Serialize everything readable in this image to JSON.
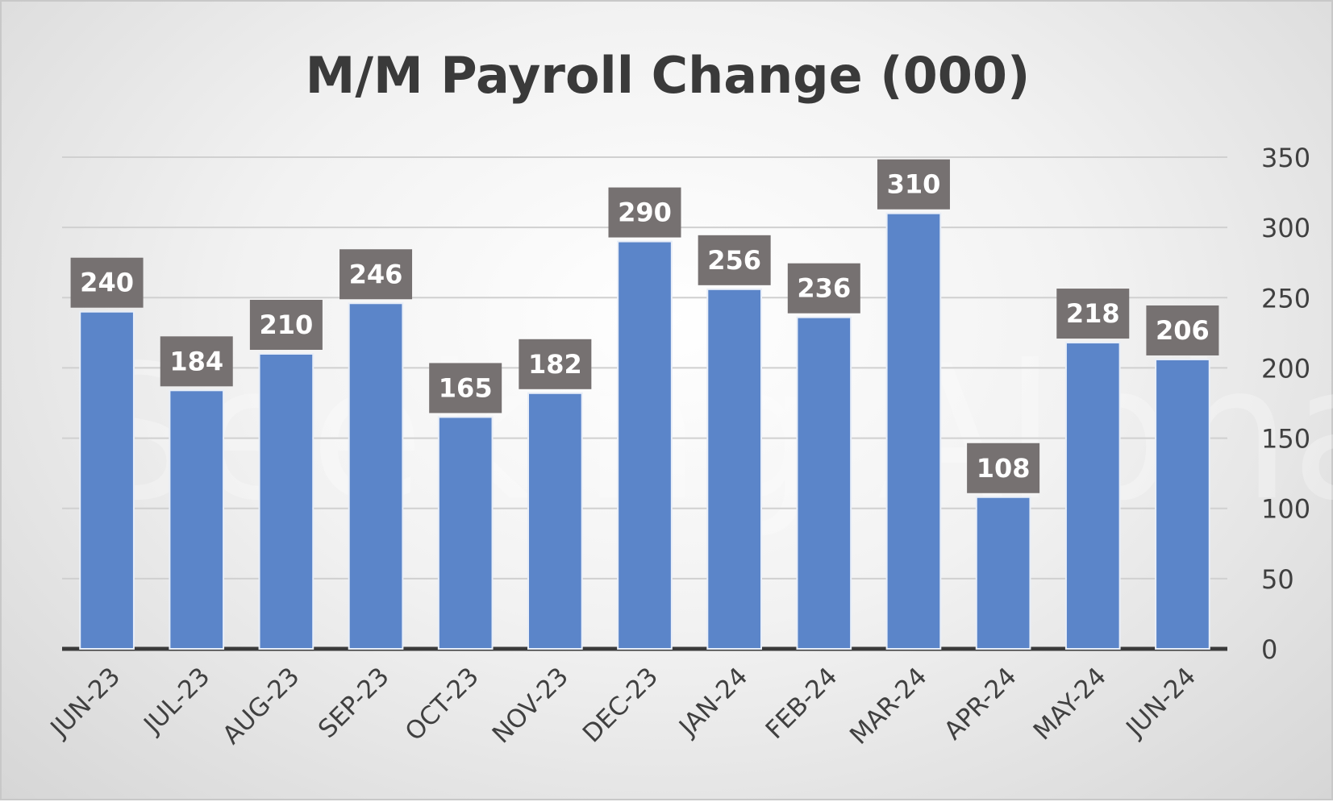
{
  "chart_data": {
    "type": "bar",
    "title": "M/M Payroll Change (000)",
    "categories": [
      "JUN-23",
      "JUL-23",
      "AUG-23",
      "SEP-23",
      "OCT-23",
      "NOV-23",
      "DEC-23",
      "JAN-24",
      "FEB-24",
      "MAR-24",
      "APR-24",
      "MAY-24",
      "JUN-24"
    ],
    "values": [
      240,
      184,
      210,
      246,
      165,
      182,
      290,
      256,
      236,
      310,
      108,
      218,
      206
    ],
    "ylim": [
      0,
      350
    ],
    "yticks": [
      0,
      50,
      100,
      150,
      200,
      250,
      300,
      350
    ],
    "y_axis_position": "right",
    "grid": true,
    "legend": "none",
    "colors": {
      "bar": "#5b85c9",
      "bar_edge": "#e8eef8",
      "label_box": "#767171",
      "label_text": "#ffffff",
      "grid": "#d0d0d0",
      "baseline": "#3a3a3a"
    },
    "watermark": "Seeking Alpha"
  }
}
